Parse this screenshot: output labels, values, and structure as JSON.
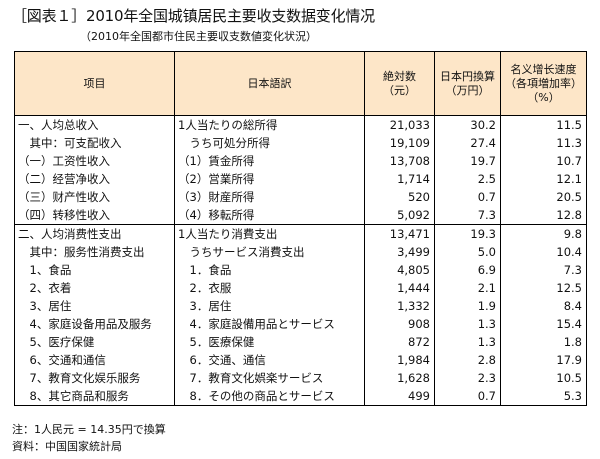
{
  "title": "［図表１］2010年全国城镇居民主要收支数据变化情况",
  "subtitle": "（2010年全国都市住民主要収支数値変化状況）",
  "table": {
    "headers": {
      "item": "项目",
      "japanese": "日本語訳",
      "absolute_line1": "絶対数",
      "absolute_line2": "（元）",
      "jpy_line1": "日本円換算",
      "jpy_line2": "（万円）",
      "growth_line1": "名义增长速度",
      "growth_line2": "（各項増加率）",
      "growth_line3": "（%）"
    },
    "rows": [
      {
        "item": "一、人均总收入",
        "ja": "1人当たりの総所得",
        "abs": "21,033",
        "jpy": "30.2",
        "growth": "11.5"
      },
      {
        "item": "　其中：可支配收入",
        "ja": "　うち可処分所得",
        "abs": "19,109",
        "jpy": "27.4",
        "growth": "11.3"
      },
      {
        "item": "（一）工资性收入",
        "ja": "（1）賃金所得",
        "abs": "13,708",
        "jpy": "19.7",
        "growth": "10.7"
      },
      {
        "item": "（二）经营净收入",
        "ja": "（2）営業所得",
        "abs": "1,714",
        "jpy": "2.5",
        "growth": "12.1"
      },
      {
        "item": "（三）财产性收入",
        "ja": "（3）財産所得",
        "abs": "520",
        "jpy": "0.7",
        "growth": "20.5"
      },
      {
        "item": "（四）转移性收入",
        "ja": "（4）移転所得",
        "abs": "5,092",
        "jpy": "7.3",
        "growth": "12.8"
      },
      {
        "item": "二、人均消费性支出",
        "ja": "1人当たり消費支出",
        "abs": "13,471",
        "jpy": "19.3",
        "growth": "9.8"
      },
      {
        "item": "　其中：服务性消费支出",
        "ja": "　うちサービス消費支出",
        "abs": "3,499",
        "jpy": "5.0",
        "growth": "10.4"
      },
      {
        "item": "　1、食品",
        "ja": "　1．食品",
        "abs": "4,805",
        "jpy": "6.9",
        "growth": "7.3"
      },
      {
        "item": "　2、衣着",
        "ja": "　2．衣服",
        "abs": "1,444",
        "jpy": "2.1",
        "growth": "12.5"
      },
      {
        "item": "　3、居住",
        "ja": "　3．居住",
        "abs": "1,332",
        "jpy": "1.9",
        "growth": "8.4"
      },
      {
        "item": "　4、家庭设备用品及服务",
        "ja": "　4．家庭設備用品とサービス",
        "abs": "908",
        "jpy": "1.3",
        "growth": "15.4"
      },
      {
        "item": "　5、医疗保健",
        "ja": "　5．医療保健",
        "abs": "872",
        "jpy": "1.3",
        "growth": "1.8"
      },
      {
        "item": "　6、交通和通信",
        "ja": "　6．交通、通信",
        "abs": "1,984",
        "jpy": "2.8",
        "growth": "17.9"
      },
      {
        "item": "　7、教育文化娱乐服务",
        "ja": "　7．教育文化娯楽サービス",
        "abs": "1,628",
        "jpy": "2.3",
        "growth": "10.5"
      },
      {
        "item": "　8、其它商品和服务",
        "ja": "　8．その他の商品とサービス",
        "abs": "499",
        "jpy": "0.7",
        "growth": "5.3"
      }
    ]
  },
  "notes": {
    "rate": "注：1人民元 = 14.35円で換算",
    "source": "資料：中国国家統計局"
  }
}
